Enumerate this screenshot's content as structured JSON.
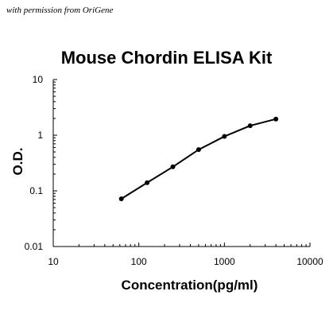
{
  "watermark": "with permission from OriGene",
  "chart_data": {
    "type": "line",
    "title": "Mouse Chordin ELISA Kit",
    "xlabel": "Concentration(pg/ml)",
    "ylabel": "O.D.",
    "xscale": "log",
    "yscale": "log",
    "xlim": [
      10,
      10000
    ],
    "ylim": [
      0.01,
      10
    ],
    "x_tick_labels": [
      "10",
      "100",
      "1000",
      "10000"
    ],
    "y_tick_labels": [
      "0.01",
      "0.1",
      "1",
      "10"
    ],
    "grid": false,
    "legend": "none",
    "series": [
      {
        "x": [
          62.5,
          125,
          250,
          500,
          1000,
          2000,
          4000
        ],
        "y": [
          0.072,
          0.14,
          0.27,
          0.55,
          0.95,
          1.48,
          1.95
        ]
      }
    ],
    "colors": {
      "line": "#000000",
      "marker": "#000000",
      "axis": "#000000"
    }
  }
}
